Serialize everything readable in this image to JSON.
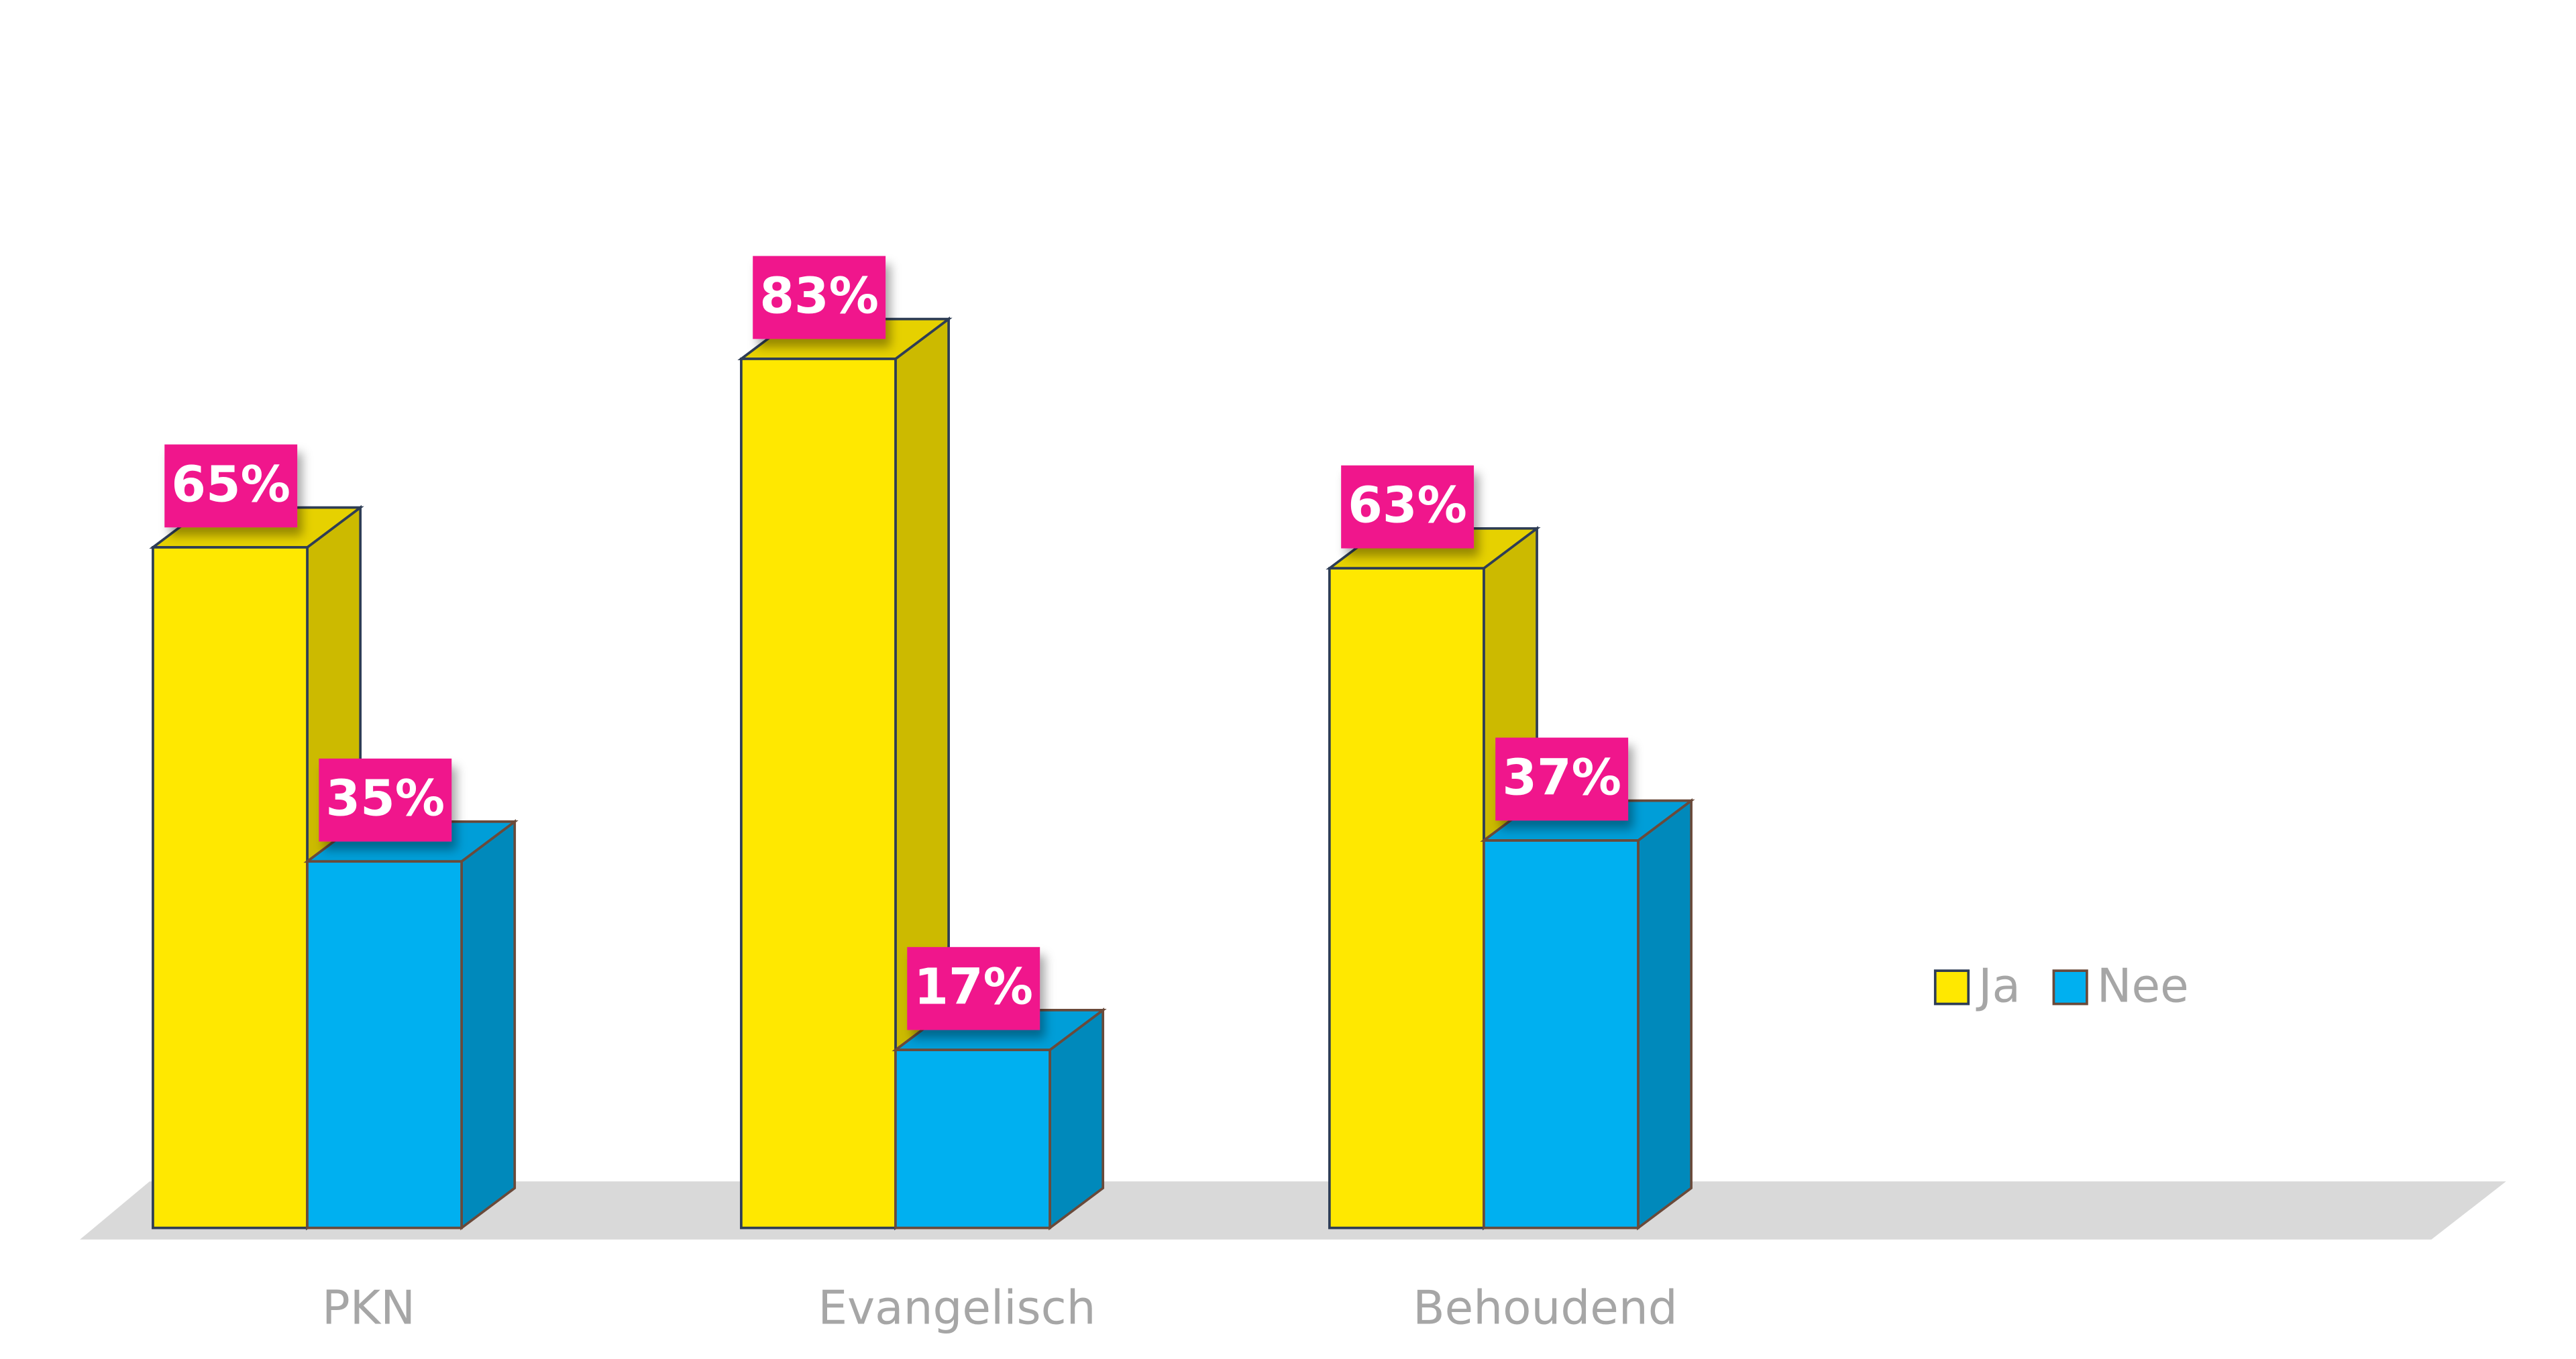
{
  "chart_data": {
    "type": "bar3d",
    "categories": [
      "PKN",
      "Evangelisch",
      "Behoudend"
    ],
    "series": [
      {
        "name": "Ja",
        "color": "#ffe800",
        "values": [
          65,
          83,
          63
        ],
        "value_labels": [
          "65%",
          "83%",
          "63%"
        ]
      },
      {
        "name": "Nee",
        "color": "#00b0f0",
        "values": [
          35,
          17,
          37
        ],
        "value_labels": [
          "35%",
          "17%",
          "37%"
        ]
      }
    ],
    "ylim": [
      0,
      100
    ],
    "legend": "right",
    "label_color": "#f0148c"
  }
}
